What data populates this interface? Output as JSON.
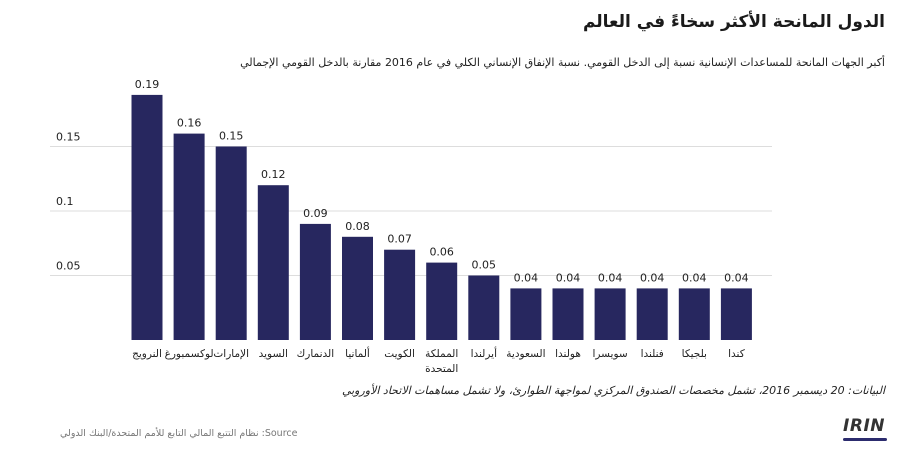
{
  "title": "الدول المانحة الأكثر سخاءً في العالم",
  "subtitle": "أكبر الجهات المانحة للمساعدات الإنسانية نسبة إلى الدخل القومي. نسبة الإنفاق الإنساني الكلي في عام 2016 مقارنة بالدخل القومي الإجمالي",
  "note": "البيانات: 20 ديسمبر 2016، تشمل مخصصات الصندوق المركزي لمواجهة الطوارئ، ولا تشمل مساهمات الاتحاد الأوروبي",
  "source": "نظام التتبع المالي التابع للأمم المتحدة/البنك الدولي :Source",
  "logo": "IRIN",
  "colors": {
    "bar": "#27275f",
    "grid": "#dddddd",
    "text": "#222222"
  },
  "chart_data": {
    "type": "bar",
    "title": "الدول المانحة الأكثر سخاءً في العالم",
    "xlabel": "",
    "ylabel": "",
    "ylim": [
      0,
      0.2
    ],
    "yticks": [
      0.05,
      0.1,
      0.15
    ],
    "ytick_labels": [
      "0.05",
      "0.1",
      "0.15"
    ],
    "grid": true,
    "categories": [
      [
        "النرويج"
      ],
      [
        "لوكسمبورغ"
      ],
      [
        "الإمارات"
      ],
      [
        "السويد"
      ],
      [
        "الدنمارك"
      ],
      [
        "ألمانيا"
      ],
      [
        "الكويت"
      ],
      [
        "المملكة",
        "المتحدة"
      ],
      [
        "أيرلندا"
      ],
      [
        "السعودية"
      ],
      [
        "هولندا"
      ],
      [
        "سويسرا"
      ],
      [
        "فنلندا"
      ],
      [
        "بلجيكا"
      ],
      [
        "كندا"
      ]
    ],
    "values": [
      0.19,
      0.16,
      0.15,
      0.12,
      0.09,
      0.08,
      0.07,
      0.06,
      0.05,
      0.04,
      0.04,
      0.04,
      0.04,
      0.04,
      0.04
    ],
    "value_labels": [
      "0.19",
      "0.16",
      "0.15",
      "0.12",
      "0.09",
      "0.08",
      "0.07",
      "0.06",
      "0.05",
      "0.04",
      "0.04",
      "0.04",
      "0.04",
      "0.04",
      "0.04"
    ]
  }
}
